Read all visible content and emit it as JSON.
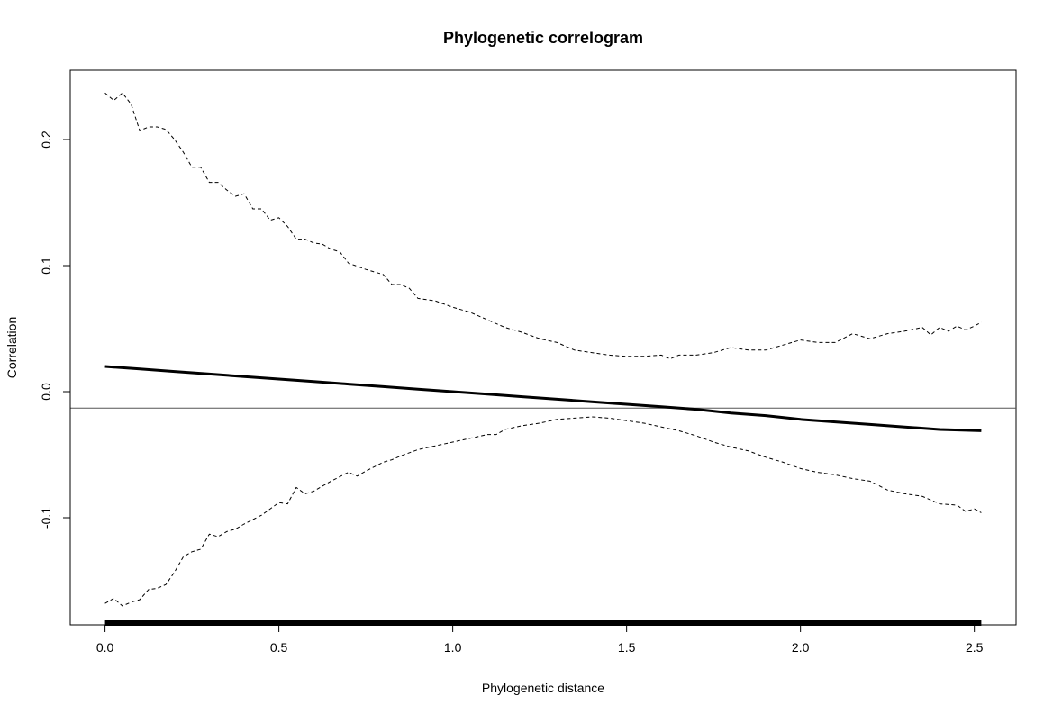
{
  "chart_data": {
    "type": "line",
    "title": "Phylogenetic correlogram",
    "xlabel": "Phylogenetic distance",
    "ylabel": "Correlation",
    "xlim": [
      -0.1,
      2.62
    ],
    "ylim": [
      -0.185,
      0.255
    ],
    "x_ticks": [
      0.0,
      0.5,
      1.0,
      1.5,
      2.0,
      2.5
    ],
    "x_tick_labels": [
      "0.0",
      "0.5",
      "1.0",
      "1.5",
      "2.0",
      "2.5"
    ],
    "y_ticks": [
      -0.1,
      0.0,
      0.1,
      0.2
    ],
    "y_tick_labels": [
      "-0.1",
      "0.0",
      "0.1",
      "0.2"
    ],
    "reference_line_y": -0.013,
    "rug": {
      "from": 0.0,
      "to": 2.52
    },
    "grid": false,
    "legend": "none",
    "series": [
      {
        "style": "solid",
        "color": "#000000",
        "points": [
          [
            0.0,
            0.02
          ],
          [
            0.1,
            0.018
          ],
          [
            0.2,
            0.016
          ],
          [
            0.3,
            0.014
          ],
          [
            0.4,
            0.012
          ],
          [
            0.5,
            0.01
          ],
          [
            0.6,
            0.008
          ],
          [
            0.7,
            0.006
          ],
          [
            0.8,
            0.004
          ],
          [
            0.9,
            0.002
          ],
          [
            1.0,
            0.0
          ],
          [
            1.1,
            -0.002
          ],
          [
            1.2,
            -0.004
          ],
          [
            1.3,
            -0.006
          ],
          [
            1.4,
            -0.008
          ],
          [
            1.5,
            -0.01
          ],
          [
            1.6,
            -0.012
          ],
          [
            1.7,
            -0.014
          ],
          [
            1.8,
            -0.017
          ],
          [
            1.9,
            -0.019
          ],
          [
            2.0,
            -0.022
          ],
          [
            2.1,
            -0.024
          ],
          [
            2.2,
            -0.026
          ],
          [
            2.3,
            -0.028
          ],
          [
            2.4,
            -0.03
          ],
          [
            2.52,
            -0.031
          ]
        ]
      },
      {
        "style": "dashed",
        "color": "#000000",
        "points": [
          [
            0.0,
            0.237
          ],
          [
            0.025,
            0.231
          ],
          [
            0.05,
            0.237
          ],
          [
            0.075,
            0.228
          ],
          [
            0.1,
            0.207
          ],
          [
            0.125,
            0.21
          ],
          [
            0.15,
            0.21
          ],
          [
            0.175,
            0.208
          ],
          [
            0.2,
            0.2
          ],
          [
            0.225,
            0.19
          ],
          [
            0.25,
            0.178
          ],
          [
            0.275,
            0.178
          ],
          [
            0.3,
            0.166
          ],
          [
            0.325,
            0.166
          ],
          [
            0.35,
            0.16
          ],
          [
            0.375,
            0.155
          ],
          [
            0.4,
            0.157
          ],
          [
            0.425,
            0.145
          ],
          [
            0.45,
            0.145
          ],
          [
            0.475,
            0.136
          ],
          [
            0.5,
            0.138
          ],
          [
            0.525,
            0.131
          ],
          [
            0.55,
            0.121
          ],
          [
            0.575,
            0.121
          ],
          [
            0.6,
            0.118
          ],
          [
            0.625,
            0.117
          ],
          [
            0.65,
            0.113
          ],
          [
            0.675,
            0.111
          ],
          [
            0.7,
            0.102
          ],
          [
            0.75,
            0.097
          ],
          [
            0.8,
            0.093
          ],
          [
            0.825,
            0.085
          ],
          [
            0.85,
            0.085
          ],
          [
            0.875,
            0.082
          ],
          [
            0.9,
            0.074
          ],
          [
            0.95,
            0.072
          ],
          [
            1.0,
            0.067
          ],
          [
            1.05,
            0.063
          ],
          [
            1.1,
            0.057
          ],
          [
            1.15,
            0.051
          ],
          [
            1.2,
            0.047
          ],
          [
            1.25,
            0.042
          ],
          [
            1.3,
            0.039
          ],
          [
            1.35,
            0.033
          ],
          [
            1.4,
            0.031
          ],
          [
            1.45,
            0.029
          ],
          [
            1.5,
            0.028
          ],
          [
            1.55,
            0.028
          ],
          [
            1.6,
            0.029
          ],
          [
            1.625,
            0.026
          ],
          [
            1.65,
            0.029
          ],
          [
            1.7,
            0.029
          ],
          [
            1.75,
            0.031
          ],
          [
            1.8,
            0.035
          ],
          [
            1.85,
            0.033
          ],
          [
            1.9,
            0.033
          ],
          [
            1.95,
            0.037
          ],
          [
            2.0,
            0.041
          ],
          [
            2.05,
            0.039
          ],
          [
            2.1,
            0.039
          ],
          [
            2.15,
            0.046
          ],
          [
            2.2,
            0.042
          ],
          [
            2.25,
            0.046
          ],
          [
            2.3,
            0.048
          ],
          [
            2.35,
            0.051
          ],
          [
            2.375,
            0.045
          ],
          [
            2.4,
            0.051
          ],
          [
            2.425,
            0.048
          ],
          [
            2.45,
            0.052
          ],
          [
            2.475,
            0.049
          ],
          [
            2.5,
            0.052
          ],
          [
            2.52,
            0.055
          ]
        ]
      },
      {
        "style": "dashed",
        "color": "#000000",
        "points": [
          [
            0.0,
            -0.168
          ],
          [
            0.025,
            -0.164
          ],
          [
            0.05,
            -0.17
          ],
          [
            0.075,
            -0.167
          ],
          [
            0.1,
            -0.165
          ],
          [
            0.125,
            -0.157
          ],
          [
            0.15,
            -0.156
          ],
          [
            0.175,
            -0.153
          ],
          [
            0.2,
            -0.143
          ],
          [
            0.225,
            -0.131
          ],
          [
            0.25,
            -0.127
          ],
          [
            0.275,
            -0.125
          ],
          [
            0.3,
            -0.113
          ],
          [
            0.325,
            -0.115
          ],
          [
            0.35,
            -0.111
          ],
          [
            0.375,
            -0.109
          ],
          [
            0.4,
            -0.105
          ],
          [
            0.45,
            -0.098
          ],
          [
            0.5,
            -0.088
          ],
          [
            0.525,
            -0.089
          ],
          [
            0.55,
            -0.076
          ],
          [
            0.575,
            -0.081
          ],
          [
            0.6,
            -0.079
          ],
          [
            0.65,
            -0.071
          ],
          [
            0.7,
            -0.064
          ],
          [
            0.725,
            -0.067
          ],
          [
            0.75,
            -0.063
          ],
          [
            0.8,
            -0.056
          ],
          [
            0.825,
            -0.054
          ],
          [
            0.85,
            -0.051
          ],
          [
            0.9,
            -0.046
          ],
          [
            0.95,
            -0.043
          ],
          [
            1.0,
            -0.04
          ],
          [
            1.05,
            -0.037
          ],
          [
            1.1,
            -0.034
          ],
          [
            1.125,
            -0.034
          ],
          [
            1.15,
            -0.03
          ],
          [
            1.2,
            -0.027
          ],
          [
            1.25,
            -0.025
          ],
          [
            1.3,
            -0.022
          ],
          [
            1.35,
            -0.021
          ],
          [
            1.4,
            -0.02
          ],
          [
            1.45,
            -0.021
          ],
          [
            1.5,
            -0.023
          ],
          [
            1.55,
            -0.025
          ],
          [
            1.6,
            -0.028
          ],
          [
            1.65,
            -0.031
          ],
          [
            1.7,
            -0.035
          ],
          [
            1.75,
            -0.04
          ],
          [
            1.8,
            -0.044
          ],
          [
            1.85,
            -0.047
          ],
          [
            1.9,
            -0.052
          ],
          [
            1.95,
            -0.056
          ],
          [
            2.0,
            -0.061
          ],
          [
            2.05,
            -0.064
          ],
          [
            2.1,
            -0.066
          ],
          [
            2.15,
            -0.069
          ],
          [
            2.2,
            -0.071
          ],
          [
            2.25,
            -0.078
          ],
          [
            2.3,
            -0.081
          ],
          [
            2.35,
            -0.083
          ],
          [
            2.4,
            -0.089
          ],
          [
            2.45,
            -0.09
          ],
          [
            2.475,
            -0.095
          ],
          [
            2.5,
            -0.093
          ],
          [
            2.52,
            -0.096
          ]
        ]
      }
    ]
  }
}
